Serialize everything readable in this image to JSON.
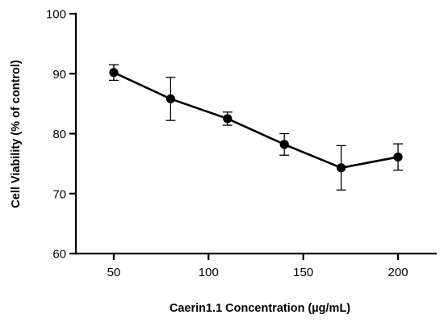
{
  "chart_data": {
    "type": "line",
    "title": "",
    "xlabel": "Caerin1.1 Concentration (µg/mL)",
    "ylabel": "Cell Viability (% of control)",
    "xlim": [
      30,
      220
    ],
    "ylim": [
      60,
      100
    ],
    "xticks": [
      50,
      100,
      150,
      200
    ],
    "yticks": [
      60,
      70,
      80,
      90,
      100
    ],
    "grid": false,
    "legend": "none",
    "series": [
      {
        "x": [
          50,
          80,
          110,
          140,
          170,
          200
        ],
        "y": [
          90.2,
          85.8,
          82.5,
          78.2,
          74.3,
          76.1
        ],
        "error": [
          1.3,
          3.6,
          1.1,
          1.8,
          3.7,
          2.2
        ],
        "color": "#000000",
        "marker": "circle"
      }
    ]
  }
}
